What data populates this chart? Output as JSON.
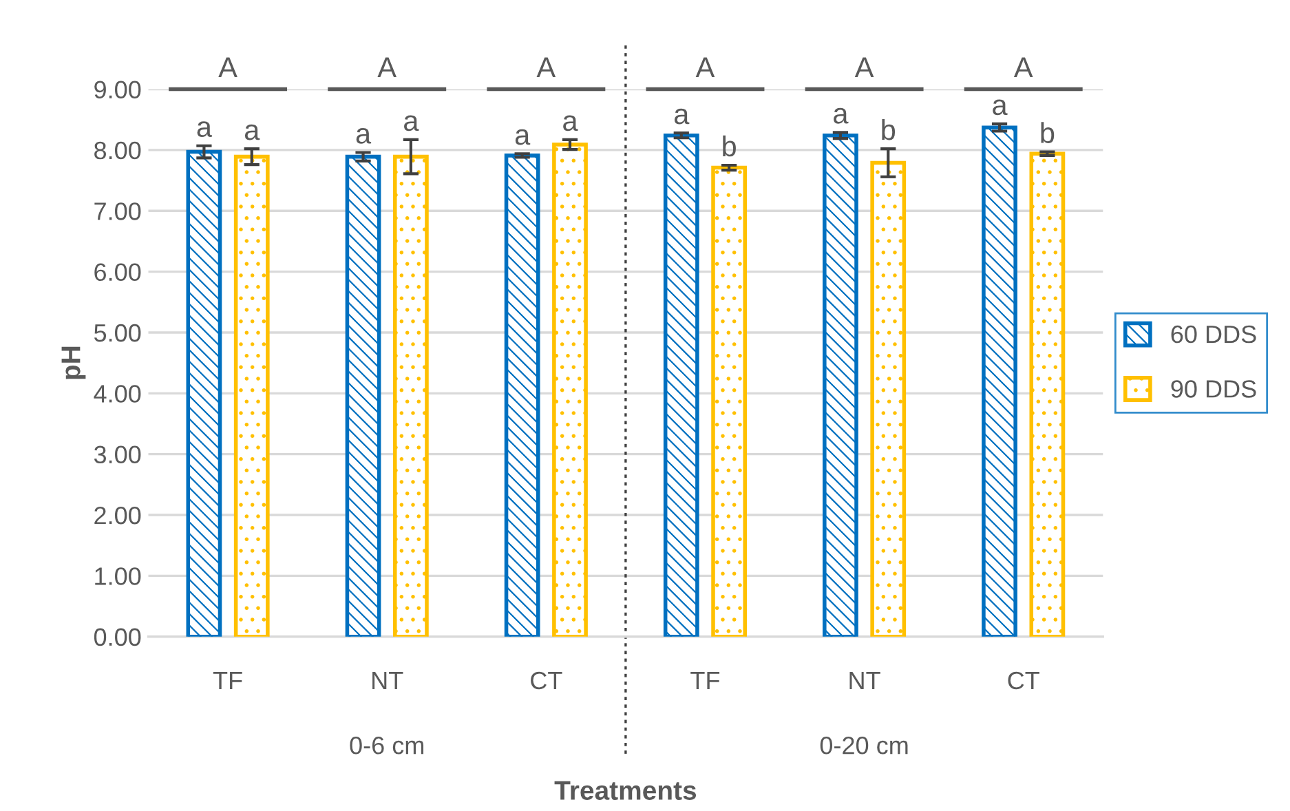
{
  "chart_data": {
    "type": "bar",
    "xlabel": "Treatments",
    "ylabel": "pH",
    "categories": [
      "TF",
      "NT",
      "CT",
      "TF",
      "NT",
      "CT"
    ],
    "series": [
      {
        "name": "60 DDS",
        "color": "#0070c0",
        "values": [
          7.97,
          7.89,
          7.91,
          8.24,
          8.24,
          8.37
        ],
        "errors": [
          0.1,
          0.07,
          0.03,
          0.04,
          0.05,
          0.06
        ],
        "value_labels": [
          "a",
          "a",
          "a",
          "a",
          "a",
          "a"
        ]
      },
      {
        "name": "90 DDS",
        "color": "#ffc000",
        "values": [
          7.89,
          7.89,
          8.09,
          7.71,
          7.79,
          7.94
        ],
        "errors": [
          0.13,
          0.28,
          0.08,
          0.04,
          0.23,
          0.03
        ],
        "value_labels": [
          "a",
          "a",
          "a",
          "b",
          "b",
          "b"
        ]
      }
    ],
    "annotations": [
      "A",
      "A",
      "A",
      "A",
      "A",
      "A",
      "0-6 cm",
      "0-20 cm"
    ],
    "ylim": [
      0,
      9
    ],
    "yticks": [
      {
        "value": 0,
        "label": "0.00"
      },
      {
        "value": 1,
        "label": "1.00"
      },
      {
        "value": 2,
        "label": "2.00"
      },
      {
        "value": 3,
        "label": "3.00"
      },
      {
        "value": 4,
        "label": "4.00"
      },
      {
        "value": 5,
        "label": "5.00"
      },
      {
        "value": 6,
        "label": "6.00"
      },
      {
        "value": 7,
        "label": "7.00"
      },
      {
        "value": 8,
        "label": "8.00"
      },
      {
        "value": 9,
        "label": "9.00"
      }
    ],
    "grid": "y",
    "legend": "right"
  }
}
